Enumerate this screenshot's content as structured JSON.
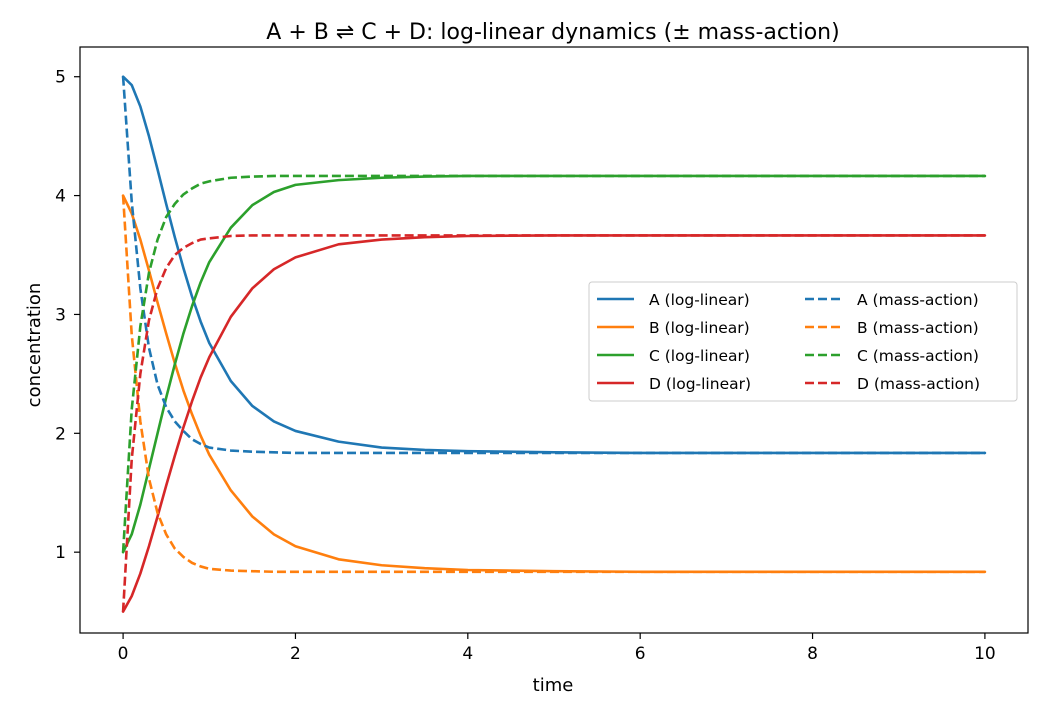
{
  "chart_data": {
    "type": "line",
    "title": "A + B ⇌ C + D: log-linear dynamics (± mass-action)",
    "xlabel": "time",
    "ylabel": "concentration",
    "xlim": [
      -0.5,
      10.5
    ],
    "ylim": [
      0.32,
      5.25
    ],
    "xticks": [
      0,
      2,
      4,
      6,
      8,
      10
    ],
    "xtick_labels": [
      "0",
      "2",
      "4",
      "6",
      "8",
      "10"
    ],
    "yticks": [
      1,
      2,
      3,
      4,
      5
    ],
    "ytick_labels": [
      "1",
      "2",
      "3",
      "4",
      "5"
    ],
    "grid": false,
    "legend_placement": "center-right",
    "legend_columns": 2,
    "x": [
      0,
      0.1,
      0.2,
      0.3,
      0.4,
      0.5,
      0.6,
      0.7,
      0.8,
      0.9,
      1.0,
      1.25,
      1.5,
      1.75,
      2.0,
      2.5,
      3.0,
      3.5,
      4.0,
      5.0,
      6.0,
      7.0,
      8.0,
      9.0,
      10.0
    ],
    "series": [
      {
        "name": "A (log-linear)",
        "color": "#1f77b4",
        "dash": "solid",
        "values": [
          5.0,
          4.93,
          4.75,
          4.5,
          4.22,
          3.93,
          3.65,
          3.39,
          3.15,
          2.94,
          2.76,
          2.44,
          2.23,
          2.1,
          2.02,
          1.93,
          1.88,
          1.86,
          1.85,
          1.84,
          1.835,
          1.835,
          1.835,
          1.835,
          1.835
        ]
      },
      {
        "name": "B (log-linear)",
        "color": "#ff7f0e",
        "dash": "solid",
        "values": [
          4.0,
          3.85,
          3.63,
          3.37,
          3.1,
          2.84,
          2.59,
          2.36,
          2.16,
          1.98,
          1.82,
          1.52,
          1.3,
          1.15,
          1.05,
          0.94,
          0.89,
          0.865,
          0.85,
          0.84,
          0.835,
          0.835,
          0.835,
          0.835,
          0.835
        ]
      },
      {
        "name": "C (log-linear)",
        "color": "#2ca02c",
        "dash": "solid",
        "values": [
          1.0,
          1.15,
          1.4,
          1.7,
          2.0,
          2.3,
          2.58,
          2.84,
          3.07,
          3.27,
          3.44,
          3.73,
          3.92,
          4.03,
          4.09,
          4.13,
          4.15,
          4.16,
          4.165,
          4.165,
          4.165,
          4.165,
          4.165,
          4.165,
          4.165
        ]
      },
      {
        "name": "D (log-linear)",
        "color": "#d62728",
        "dash": "solid",
        "values": [
          0.5,
          0.63,
          0.82,
          1.05,
          1.3,
          1.56,
          1.81,
          2.05,
          2.27,
          2.47,
          2.64,
          2.98,
          3.22,
          3.38,
          3.48,
          3.59,
          3.63,
          3.65,
          3.66,
          3.665,
          3.665,
          3.665,
          3.665,
          3.665,
          3.665
        ]
      },
      {
        "name": "A (mass-action)",
        "color": "#1f77b4",
        "dash": "dashed",
        "values": [
          5.0,
          3.95,
          3.22,
          2.72,
          2.41,
          2.22,
          2.1,
          2.02,
          1.95,
          1.91,
          1.88,
          1.855,
          1.845,
          1.84,
          1.835,
          1.835,
          1.835,
          1.835,
          1.835,
          1.835,
          1.835,
          1.835,
          1.835,
          1.835,
          1.835
        ]
      },
      {
        "name": "B (mass-action)",
        "color": "#ff7f0e",
        "dash": "dashed",
        "values": [
          4.0,
          2.83,
          2.1,
          1.62,
          1.33,
          1.15,
          1.03,
          0.96,
          0.91,
          0.88,
          0.86,
          0.845,
          0.84,
          0.835,
          0.835,
          0.835,
          0.835,
          0.835,
          0.835,
          0.835,
          0.835,
          0.835,
          0.835,
          0.835,
          0.835
        ]
      },
      {
        "name": "C (mass-action)",
        "color": "#2ca02c",
        "dash": "dashed",
        "values": [
          1.0,
          2.2,
          2.9,
          3.35,
          3.63,
          3.82,
          3.93,
          4.01,
          4.06,
          4.1,
          4.12,
          4.15,
          4.16,
          4.165,
          4.165,
          4.165,
          4.165,
          4.165,
          4.165,
          4.165,
          4.165,
          4.165,
          4.165,
          4.165,
          4.165
        ]
      },
      {
        "name": "D (mass-action)",
        "color": "#d62728",
        "dash": "dashed",
        "values": [
          0.5,
          1.78,
          2.5,
          2.95,
          3.22,
          3.39,
          3.5,
          3.56,
          3.6,
          3.63,
          3.64,
          3.66,
          3.665,
          3.665,
          3.665,
          3.665,
          3.665,
          3.665,
          3.665,
          3.665,
          3.665,
          3.665,
          3.665,
          3.665,
          3.665
        ]
      }
    ]
  }
}
